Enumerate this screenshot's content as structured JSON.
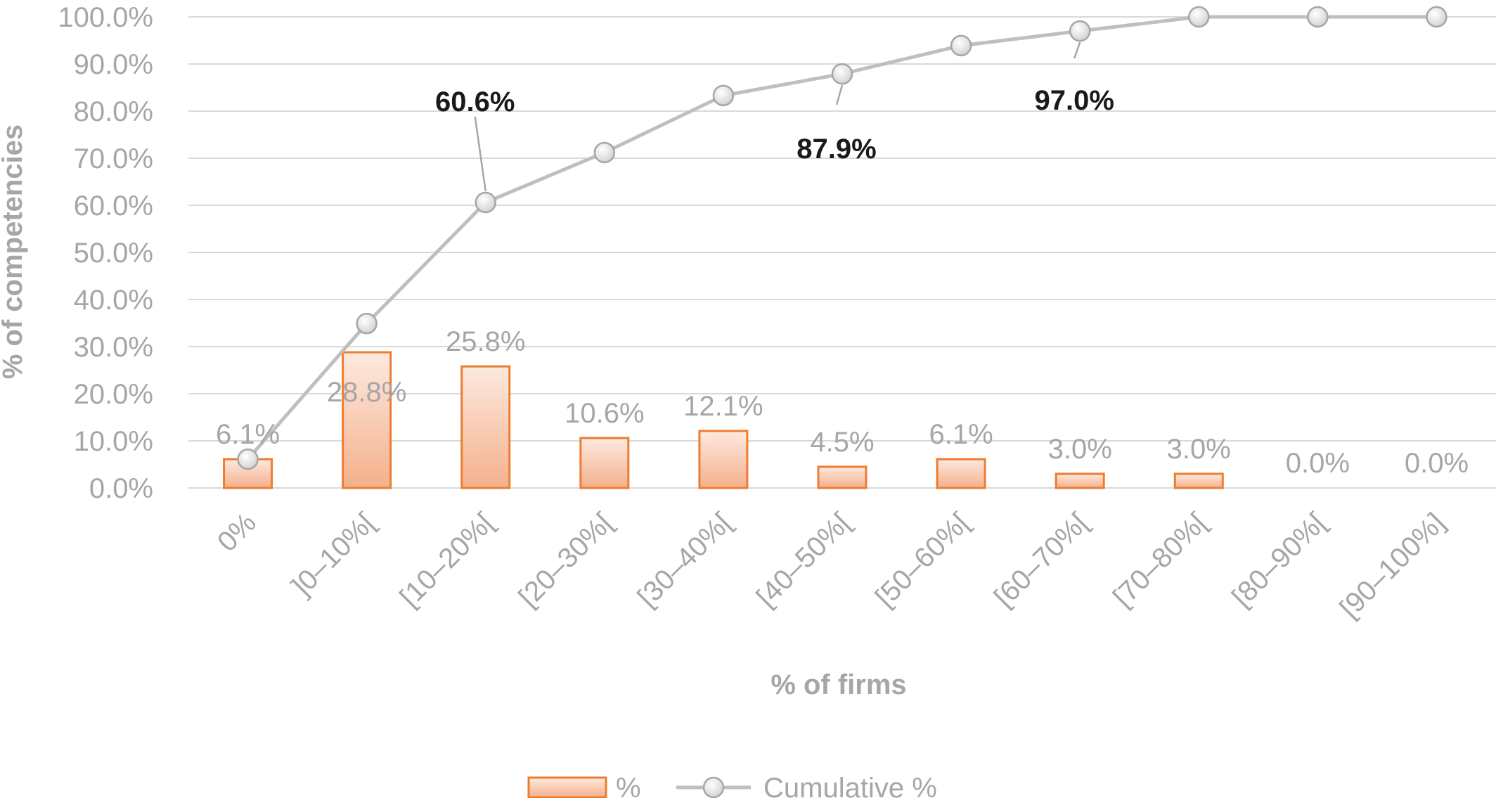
{
  "chart_data": {
    "type": "bar",
    "title": "",
    "xlabel": "% of firms",
    "ylabel": "% of competencies",
    "ylim": [
      0,
      100
    ],
    "yticks": [
      "0.0%",
      "10.0%",
      "20.0%",
      "30.0%",
      "40.0%",
      "50.0%",
      "60.0%",
      "70.0%",
      "80.0%",
      "90.0%",
      "100.0%"
    ],
    "grid": true,
    "legend_position": "bottom",
    "categories": [
      "0%",
      "]0–10%[",
      "[10–20%[",
      "[20–30%[",
      "[30–40%[",
      "[40–50%[",
      "[50–60%[",
      "[60–70%[",
      "[70–80%[",
      "[80–90%[",
      "[90–100%]"
    ],
    "series": [
      {
        "name": "%",
        "kind": "bar",
        "color": "#ed7d31",
        "values": [
          6.1,
          28.8,
          25.8,
          10.6,
          12.1,
          4.5,
          6.1,
          3.0,
          3.0,
          0.0,
          0.0
        ],
        "labels": [
          "6.1%",
          "28.8%",
          "25.8%",
          "10.6%",
          "12.1%",
          "4.5%",
          "6.1%",
          "3.0%",
          "3.0%",
          "0.0%",
          "0.0%"
        ]
      },
      {
        "name": "Cumulative %",
        "kind": "line",
        "color": "#bfbfbf",
        "values": [
          6.1,
          34.9,
          60.6,
          71.2,
          83.3,
          87.9,
          93.9,
          97.0,
          100.0,
          100.0,
          100.0
        ]
      }
    ],
    "annotations": [
      {
        "text": "60.6%",
        "index": 2
      },
      {
        "text": "87.9%",
        "index": 5
      },
      {
        "text": "97.0%",
        "index": 7
      }
    ]
  }
}
